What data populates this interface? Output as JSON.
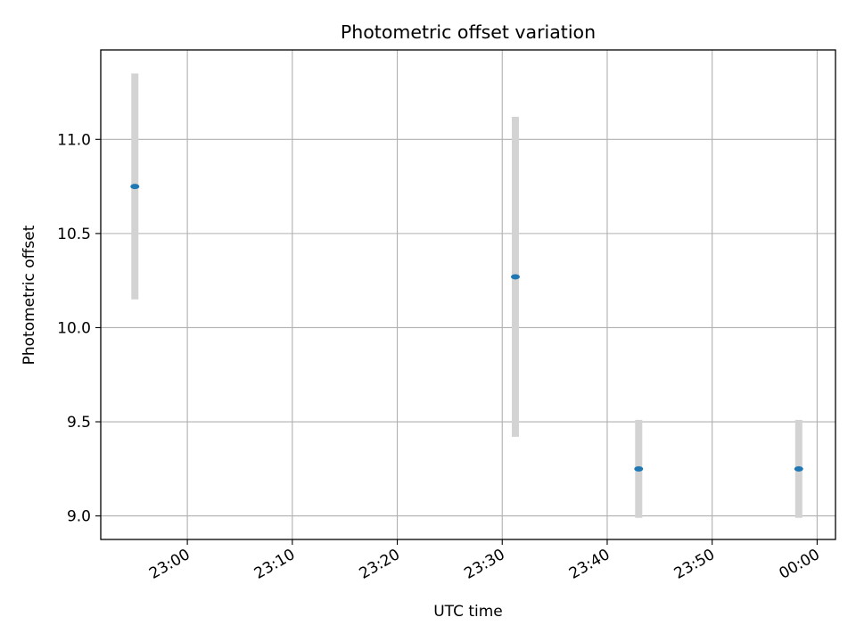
{
  "chart_data": {
    "type": "scatter",
    "title": "Photometric offset variation",
    "xlabel": "UTC time",
    "ylabel": "Photometric offset",
    "x_ticks": [
      "23:00",
      "23:10",
      "23:20",
      "23:30",
      "23:40",
      "23:50",
      "00:00"
    ],
    "y_ticks": [
      "9.0",
      "9.5",
      "10.0",
      "10.5",
      "11.0"
    ],
    "xlim": [
      "22:51:45",
      "00:01:45"
    ],
    "ylim": [
      8.875,
      11.475
    ],
    "grid": true,
    "point_color": "#1f77b4",
    "errorbar_color": "#d3d3d3",
    "points": [
      {
        "x": "22:55:00",
        "y": 10.75,
        "yerr": 0.6
      },
      {
        "x": "23:31:15",
        "y": 10.27,
        "yerr": 0.85
      },
      {
        "x": "23:43:00",
        "y": 9.25,
        "yerr": 0.26
      },
      {
        "x": "23:58:15",
        "y": 9.25,
        "yerr": 0.26
      }
    ]
  }
}
